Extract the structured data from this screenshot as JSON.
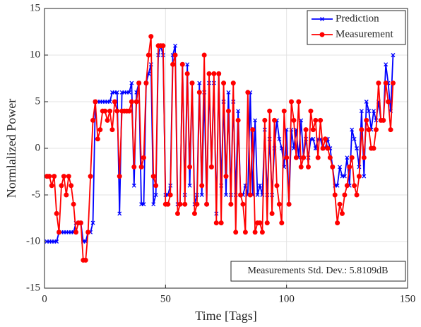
{
  "chart_data": {
    "type": "line",
    "xlabel": "Time [Tags]",
    "ylabel": "Normlalized Power",
    "x": [
      1,
      2,
      3,
      4,
      5,
      6,
      7,
      8,
      9,
      10,
      11,
      12,
      13,
      14,
      15,
      16,
      17,
      18,
      19,
      20,
      21,
      22,
      23,
      24,
      25,
      26,
      27,
      28,
      29,
      30,
      31,
      32,
      33,
      34,
      35,
      36,
      37,
      38,
      39,
      40,
      41,
      42,
      43,
      44,
      45,
      46,
      47,
      48,
      49,
      50,
      51,
      52,
      53,
      54,
      55,
      56,
      57,
      58,
      59,
      60,
      61,
      62,
      63,
      64,
      65,
      66,
      67,
      68,
      69,
      70,
      71,
      72,
      73,
      74,
      75,
      76,
      77,
      78,
      79,
      80,
      81,
      82,
      83,
      84,
      85,
      86,
      87,
      88,
      89,
      90,
      91,
      92,
      93,
      94,
      95,
      96,
      97,
      98,
      99,
      100,
      101,
      102,
      103,
      104,
      105,
      106,
      107,
      108,
      109,
      110,
      111,
      112,
      113,
      114,
      115,
      116,
      117,
      118,
      119,
      120,
      121,
      122,
      123,
      124,
      125,
      126,
      127,
      128,
      129,
      130,
      131,
      132,
      133,
      134,
      135,
      136,
      137,
      138,
      139,
      140,
      141,
      142,
      143,
      144
    ],
    "series": [
      {
        "name": "Prediction",
        "color": "#0000ff",
        "marker": "x",
        "values": [
          -10,
          -10,
          -10,
          -10,
          -10,
          -9,
          -9,
          -9,
          -9,
          -9,
          -9,
          -9,
          -8,
          -8,
          -8,
          -10,
          -10,
          -9,
          -9,
          -8,
          5,
          5,
          5,
          5,
          5,
          5,
          5,
          6,
          6,
          6,
          -7,
          6,
          6,
          6,
          6,
          7,
          -4,
          6,
          7,
          -6,
          -6,
          7,
          8,
          9,
          -6,
          -5,
          10,
          11,
          10,
          -5,
          -5,
          -4,
          10,
          11,
          -6,
          -6,
          9,
          -5,
          9,
          -4,
          7,
          -6,
          -5,
          7,
          -5,
          6,
          -6,
          7,
          -2,
          7,
          -7,
          8,
          -4,
          5,
          -5,
          6,
          -5,
          5,
          -5,
          4,
          -5,
          -5,
          -4,
          -5,
          6,
          -5,
          3,
          -5,
          -4,
          -5,
          2,
          -5,
          1,
          -5,
          0,
          3,
          1,
          0,
          -2,
          2,
          -6,
          2,
          0,
          2,
          -1,
          3,
          -1,
          1,
          -1,
          1,
          1,
          0,
          1,
          1,
          0,
          0,
          1,
          0,
          -2,
          -4,
          -4,
          -2,
          -3,
          -3,
          -1,
          -4,
          2,
          1,
          0,
          -2,
          4,
          -3,
          5,
          4,
          2,
          4,
          3,
          5,
          3,
          3,
          9,
          7,
          4,
          10
        ]
      },
      {
        "name": "Measurement",
        "color": "#ff0000",
        "marker": "o",
        "values": [
          -3,
          -3,
          -4,
          -3,
          -7,
          -9,
          -4,
          -3,
          -5,
          -3,
          -4,
          -6,
          -9,
          -8,
          -8,
          -12,
          -12,
          -9,
          -3,
          3,
          5,
          1,
          2,
          4,
          4,
          3,
          4,
          2,
          5,
          4,
          -3,
          4,
          4,
          4,
          4,
          5,
          -2,
          5,
          7,
          -2,
          -1,
          7,
          10,
          12,
          -3,
          -4,
          11,
          11,
          11,
          -6,
          -6,
          -5,
          9,
          10,
          -7,
          -6,
          9,
          -6,
          8,
          -2,
          7,
          -7,
          -6,
          6,
          -4,
          10,
          -6,
          8,
          -2,
          8,
          -8,
          8,
          -8,
          7,
          -3,
          4,
          -6,
          7,
          -9,
          3,
          -5,
          -6,
          -9,
          6,
          -5,
          2,
          -9,
          -8,
          -8,
          -9,
          3,
          -8,
          4,
          -7,
          3,
          -4,
          -6,
          -8,
          4,
          -1,
          -6,
          5,
          3,
          -1,
          5,
          -2,
          -1,
          2,
          -2,
          4,
          2,
          3,
          -1,
          3,
          0,
          1,
          0,
          -1,
          -2,
          -5,
          -8,
          -6,
          -7,
          -5,
          -4,
          -2,
          -1,
          -4,
          -5,
          -3,
          2,
          -1,
          3,
          2,
          0,
          0,
          2,
          7,
          3,
          3,
          7,
          5,
          2,
          7
        ]
      }
    ],
    "xlim": [
      0,
      150
    ],
    "xticks": [
      0,
      50,
      100,
      150
    ],
    "ylim": [
      -15,
      15
    ],
    "yticks": [
      -15,
      -10,
      -5,
      0,
      5,
      10,
      15
    ],
    "grid": true,
    "legend": "northeast",
    "annotation": "Measurements Std. Dev.: 5.8109dB"
  }
}
